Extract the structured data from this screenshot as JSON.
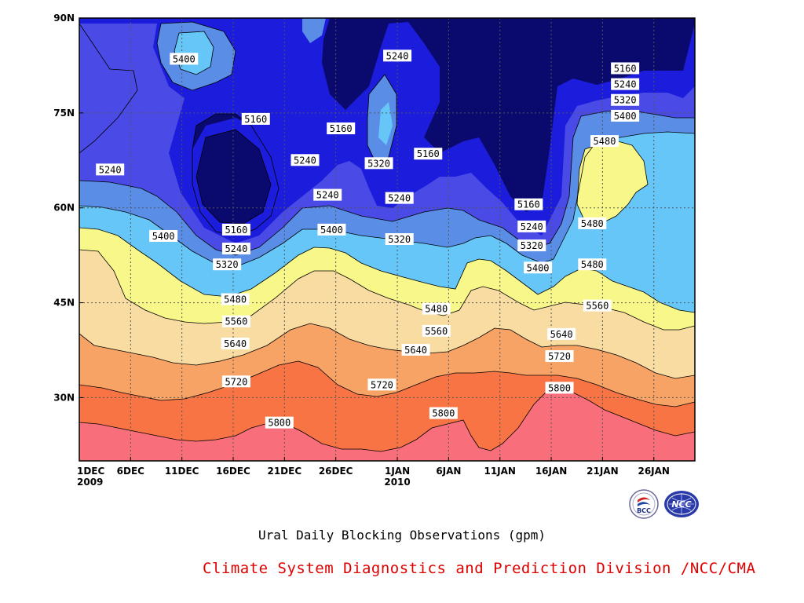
{
  "chart_data": {
    "type": "heatmap",
    "title": "",
    "subtitle": "Ural Daily Blocking Observations (gpm)",
    "credit": "Climate System Diagnostics and Prediction Division /NCC/CMA",
    "x_ticks": [
      {
        "day": 0,
        "label": "1DEC",
        "year": "2009"
      },
      {
        "day": 5,
        "label": "6DEC",
        "year": ""
      },
      {
        "day": 10,
        "label": "11DEC",
        "year": ""
      },
      {
        "day": 15,
        "label": "16DEC",
        "year": ""
      },
      {
        "day": 20,
        "label": "21DEC",
        "year": ""
      },
      {
        "day": 25,
        "label": "26DEC",
        "year": ""
      },
      {
        "day": 31,
        "label": "1JAN",
        "year": "2010"
      },
      {
        "day": 36,
        "label": "6JAN",
        "year": ""
      },
      {
        "day": 41,
        "label": "11JAN",
        "year": ""
      },
      {
        "day": 46,
        "label": "16JAN",
        "year": ""
      },
      {
        "day": 51,
        "label": "21JAN",
        "year": ""
      },
      {
        "day": 56,
        "label": "26JAN",
        "year": ""
      }
    ],
    "y_ticks": [
      {
        "lat": 30,
        "label": "30N"
      },
      {
        "lat": 45,
        "label": "45N"
      },
      {
        "lat": 60,
        "label": "60N"
      },
      {
        "lat": 75,
        "label": "75N"
      },
      {
        "lat": 90,
        "label": "90N"
      }
    ],
    "x_range_days": [
      0,
      60
    ],
    "y_range_lat": [
      20,
      90
    ],
    "contour_levels": [
      5160,
      5240,
      5320,
      5400,
      5480,
      5560,
      5640,
      5720,
      5800
    ],
    "level_colors": [
      "#0a0a6e",
      "#1c1cdc",
      "#4a4ae6",
      "#5a8ee6",
      "#66c6f8",
      "#f8f88a",
      "#f8dca2",
      "#f8a366",
      "#f87444",
      "#f86e7a"
    ],
    "grid": true,
    "contour_labels": [
      {
        "text": "5240",
        "day": 3.0,
        "lat": 66.0
      },
      {
        "text": "5400",
        "day": 10.2,
        "lat": 83.5
      },
      {
        "text": "5160",
        "day": 17.2,
        "lat": 74.0
      },
      {
        "text": "5240",
        "day": 22.0,
        "lat": 67.5
      },
      {
        "text": "5160",
        "day": 25.5,
        "lat": 72.5
      },
      {
        "text": "5240",
        "day": 31.0,
        "lat": 84.0
      },
      {
        "text": "5320",
        "day": 29.2,
        "lat": 67.0
      },
      {
        "text": "5160",
        "day": 34.0,
        "lat": 68.5
      },
      {
        "text": "5240",
        "day": 24.2,
        "lat": 62.0
      },
      {
        "text": "5240",
        "day": 31.2,
        "lat": 61.5
      },
      {
        "text": "5160",
        "day": 43.8,
        "lat": 60.5
      },
      {
        "text": "5240",
        "day": 44.1,
        "lat": 57.0
      },
      {
        "text": "5320",
        "day": 44.1,
        "lat": 54.0
      },
      {
        "text": "5400",
        "day": 44.7,
        "lat": 50.5
      },
      {
        "text": "5400",
        "day": 8.2,
        "lat": 55.5
      },
      {
        "text": "5160",
        "day": 15.3,
        "lat": 56.5
      },
      {
        "text": "5240",
        "day": 15.3,
        "lat": 53.5
      },
      {
        "text": "5320",
        "day": 14.4,
        "lat": 51.0
      },
      {
        "text": "5400",
        "day": 24.6,
        "lat": 56.5
      },
      {
        "text": "5320",
        "day": 31.2,
        "lat": 55.0
      },
      {
        "text": "5480",
        "day": 15.2,
        "lat": 45.5
      },
      {
        "text": "5560",
        "day": 15.3,
        "lat": 42.0
      },
      {
        "text": "5640",
        "day": 15.2,
        "lat": 38.5
      },
      {
        "text": "5720",
        "day": 15.3,
        "lat": 32.5
      },
      {
        "text": "5800",
        "day": 19.5,
        "lat": 26.0
      },
      {
        "text": "5480",
        "day": 34.8,
        "lat": 44.0
      },
      {
        "text": "5560",
        "day": 34.8,
        "lat": 40.5
      },
      {
        "text": "5640",
        "day": 32.8,
        "lat": 37.5
      },
      {
        "text": "5720",
        "day": 29.5,
        "lat": 32.0
      },
      {
        "text": "5800",
        "day": 35.5,
        "lat": 27.5
      },
      {
        "text": "5160",
        "day": 53.2,
        "lat": 82.0
      },
      {
        "text": "5240",
        "day": 53.2,
        "lat": 79.5
      },
      {
        "text": "5320",
        "day": 53.2,
        "lat": 77.0
      },
      {
        "text": "5400",
        "day": 53.2,
        "lat": 74.5
      },
      {
        "text": "5480",
        "day": 51.2,
        "lat": 70.5
      },
      {
        "text": "5480",
        "day": 50.0,
        "lat": 57.5
      },
      {
        "text": "5480",
        "day": 50.0,
        "lat": 51.0
      },
      {
        "text": "5560",
        "day": 50.5,
        "lat": 44.5
      },
      {
        "text": "5640",
        "day": 47.0,
        "lat": 40.0
      },
      {
        "text": "5720",
        "day": 46.8,
        "lat": 36.5
      },
      {
        "text": "5800",
        "day": 46.8,
        "lat": 31.5
      }
    ]
  },
  "logos": {
    "bcc": {
      "icon": "bcc-logo",
      "text": "BCC"
    },
    "ncc": {
      "icon": "ncc-logo",
      "text": "NCC"
    }
  }
}
